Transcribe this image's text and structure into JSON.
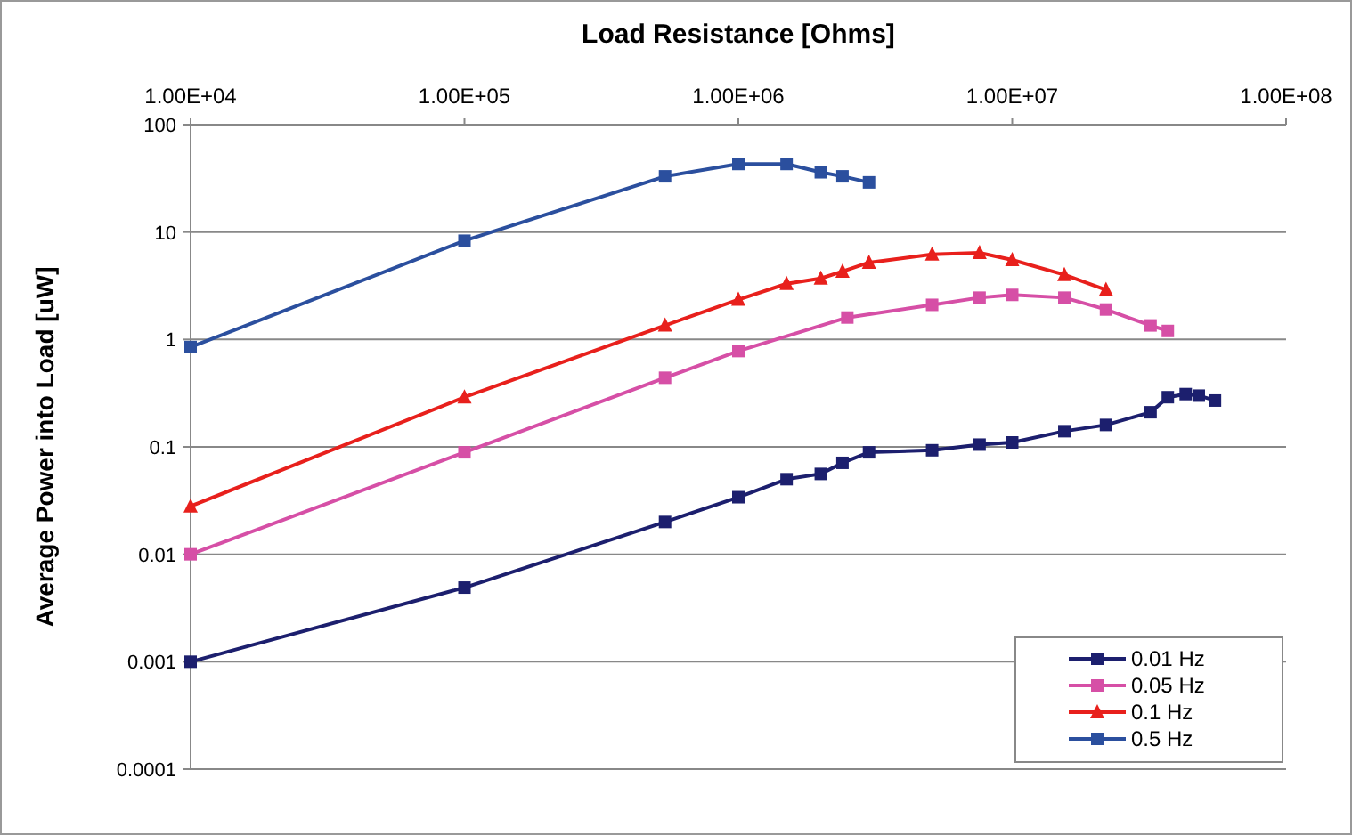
{
  "chart_data": {
    "type": "line",
    "xlabel": "Load Resistance [Ohms]",
    "ylabel": "Average Power into Load [uW]",
    "log": "xy",
    "grid": "y",
    "legend": "bottom right",
    "line_style": "solid",
    "xlim": [
      10000,
      100000000
    ],
    "xticks": [
      {
        "value": 10000,
        "label": "1.00E+04"
      },
      {
        "value": 100000,
        "label": "1.00E+05"
      },
      {
        "value": 1000000,
        "label": "1.00E+06"
      },
      {
        "value": 10000000,
        "label": "1.00E+07"
      },
      {
        "value": 100000000,
        "label": "1.00E+08"
      }
    ],
    "ylim": [
      0.0001,
      100
    ],
    "yticks": [
      0.0001,
      0.001,
      0.01,
      0.1,
      1,
      10,
      100
    ],
    "series": [
      {
        "name": "0.01 Hz",
        "color": "#1c1f6e",
        "marker": "square",
        "x": [
          10000,
          100000,
          540000,
          1000000,
          1500000,
          2000000,
          2400000,
          3000000,
          5100000,
          7600000,
          10000000,
          15500000,
          22000000,
          32000000,
          37000000,
          43000000,
          48000000,
          55000000
        ],
        "values": [
          0.001,
          0.0049,
          0.02,
          0.034,
          0.05,
          0.056,
          0.071,
          0.089,
          0.093,
          0.105,
          0.11,
          0.14,
          0.16,
          0.21,
          0.29,
          0.31,
          0.3,
          0.27
        ]
      },
      {
        "name": "0.05 Hz",
        "color": "#d64fa6",
        "marker": "square",
        "x": [
          10000,
          100000,
          540000,
          1000000,
          2500000,
          5100000,
          7600000,
          10000000,
          15500000,
          22000000,
          32000000,
          37000000
        ],
        "values": [
          0.01,
          0.089,
          0.44,
          0.78,
          1.6,
          2.1,
          2.45,
          2.6,
          2.45,
          1.9,
          1.35,
          1.2
        ]
      },
      {
        "name": "0.1 Hz",
        "color": "#e8201c",
        "marker": "triangle",
        "x": [
          10000,
          100000,
          540000,
          1000000,
          1500000,
          2000000,
          2400000,
          3000000,
          5100000,
          7600000,
          10000000,
          15500000,
          22000000
        ],
        "values": [
          0.028,
          0.29,
          1.35,
          2.35,
          3.3,
          3.7,
          4.3,
          5.2,
          6.2,
          6.4,
          5.5,
          4.0,
          2.9
        ]
      },
      {
        "name": "0.5 Hz",
        "color": "#2b4f9e",
        "marker": "square",
        "x": [
          10000,
          100000,
          540000,
          1000000,
          1500000,
          2000000,
          2400000,
          3000000
        ],
        "values": [
          0.85,
          8.3,
          33,
          43,
          43,
          36,
          33,
          29
        ]
      }
    ]
  }
}
